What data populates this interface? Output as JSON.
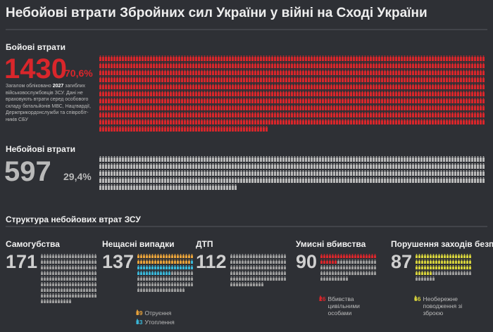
{
  "title": "Небойові втрати Збройних сил України у війні на Сході України",
  "combat": {
    "label": "Бойові втрати",
    "count": 1430,
    "percent_label": "70,6%",
    "color": "#d9262b",
    "note": [
      "Загалом обліковано ",
      "2027",
      " загиблих військовослужбовців ЗСУ. Дані не враховують втрати серед особового складу батальйонів МВС, Нацгвардії, Держприкордонслужби та співробіт-ників СБУ"
    ]
  },
  "noncombat": {
    "label": "Небойові втрати",
    "count": 597,
    "percent_label": "29,4%",
    "color": "#b9b9b9"
  },
  "structure": {
    "title": "Структура небойових втрат ЗСУ",
    "color": "#9c9c9c",
    "items": [
      {
        "label": "Самогубства",
        "count": 171,
        "subs": []
      },
      {
        "label": "Нещасні випадки",
        "count": 137,
        "subs": [
          {
            "count": 39,
            "label": "Отруєння",
            "color": "#e8a23a"
          },
          {
            "count": 33,
            "label": "Утоплення",
            "color": "#3ab7d8"
          }
        ]
      },
      {
        "label": "ДТП",
        "count": 112,
        "subs": []
      },
      {
        "label": "Умисні вбивства",
        "count": 90,
        "subs": [
          {
            "count": 26,
            "label": "Вбивства цивільними особами",
            "color": "#d9262b"
          }
        ]
      },
      {
        "label": "Порушення заходів безпеки",
        "count": 87,
        "subs": [
          {
            "count": 66,
            "label": "Необережне поводження зі зброєю",
            "color": "#d6d23c"
          }
        ]
      }
    ]
  }
}
